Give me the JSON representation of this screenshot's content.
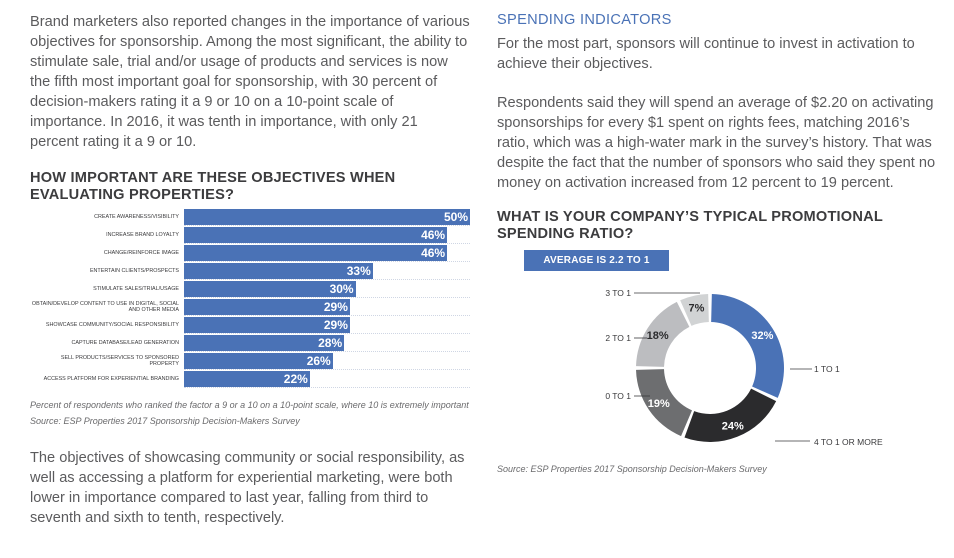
{
  "left_column": {
    "intro_paragraph": "Brand marketers also reported changes in the importance of various objectives for sponsorship. Among the most significant, the ability to stimulate sale, trial and/or usage of products and services is now the fifth most important goal for sponsorship, with 30 percent of decision-makers rating it a 9 or 10 on a 10-point scale of importance. In 2016, it was tenth in importance, with only 21 percent rating it a 9 or 10.",
    "chart_heading": "HOW IMPORTANT ARE THESE OBJECTIVES WHEN EVALUATING PROPERTIES?",
    "caption_1": "Percent of respondents who ranked the factor a 9 or a 10 on a 10-point scale, where 10 is extremely important",
    "caption_2": "Source: ESP Properties 2017 Sponsorship Decision-Makers Survey",
    "closing_paragraph": "The objectives of showcasing community or social responsibility, as well as accessing a platform for experiential marketing, were both lower in importance compared to last year, falling from third to seventh and sixth to tenth, respectively."
  },
  "right_column": {
    "section_label": "SPENDING INDICATORS",
    "paragraph_1": "For the most part, sponsors will continue to invest in activation to achieve their objectives.",
    "paragraph_2": "Respondents said they will spend an average of $2.20 on activating sponsorships for every $1 spent on rights fees, matching 2016’s ratio, which was a high-water mark in the survey’s history. That was despite the fact that the number of sponsors who said they spent no money on activation increased from 12 percent to 19 percent.",
    "chart_heading": "WHAT IS YOUR COMPANY’S TYPICAL PROMOTIONAL SPENDING RATIO?",
    "badge": "AVERAGE IS 2.2 TO 1",
    "caption": "Source: ESP Properties 2017 Sponsorship Decision-Makers Survey"
  },
  "colors": {
    "accent_blue": "#4a72b6",
    "dark": "#2b2b2d",
    "mid_gray": "#6d6e70",
    "light_gray": "#bcbdc0",
    "pale_gray": "#d1d3d4"
  },
  "chart_data": [
    {
      "type": "bar",
      "orientation": "horizontal",
      "title": "HOW IMPORTANT ARE THESE OBJECTIVES WHEN EVALUATING PROPERTIES?",
      "unit": "%",
      "xlim": [
        0,
        50
      ],
      "categories": [
        "CREATE AWARENESS/VISIBILITY",
        "INCREASE BRAND LOYALTY",
        "CHANGE/REINFORCE IMAGE",
        "ENTERTAIN CLIENTS/PROSPECTS",
        "STIMULATE SALES/TRIAL/USAGE",
        "OBTAIN/DEVELOP CONTENT TO USE IN DIGITAL, SOCIAL AND OTHER MEDIA",
        "SHOWCASE COMMUNITY/SOCIAL RESPONSIBILITY",
        "CAPTURE DATABASE/LEAD GENERATION",
        "SELL PRODUCTS/SERVICES TO SPONSORED PROPERTY",
        "ACCESS PLATFORM FOR EXPERIENTIAL BRANDING"
      ],
      "values": [
        50,
        46,
        46,
        33,
        30,
        29,
        29,
        28,
        26,
        22
      ]
    },
    {
      "type": "pie",
      "variant": "donut",
      "title": "WHAT IS YOUR COMPANY’S TYPICAL PROMOTIONAL SPENDING RATIO?",
      "unit": "%",
      "slices": [
        {
          "label": "1 TO 1",
          "value": 32,
          "color": "#4a72b6",
          "text_color": "#ffffff"
        },
        {
          "label": "4 TO 1 OR MORE",
          "value": 24,
          "color": "#2b2b2d",
          "text_color": "#ffffff"
        },
        {
          "label": "0 TO 1",
          "value": 19,
          "color": "#6d6e70",
          "text_color": "#ffffff"
        },
        {
          "label": "2 TO 1",
          "value": 18,
          "color": "#bcbdc0",
          "text_color": "#2b2b2d"
        },
        {
          "label": "3 TO 1",
          "value": 7,
          "color": "#d1d3d4",
          "text_color": "#2b2b2d"
        }
      ]
    }
  ]
}
